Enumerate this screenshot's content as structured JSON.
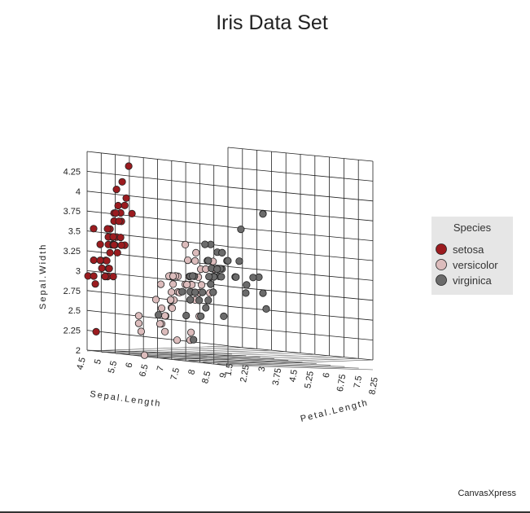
{
  "chart_data": {
    "type": "scatter",
    "title": "Iris Data Set",
    "xlabel": "Sepal.Length",
    "ylabel": "Sepal.Width",
    "zlabel": "Petal.Length",
    "x_ticks": [
      "4.5",
      "5",
      "5.5",
      "6",
      "6.5",
      "7",
      "7.5",
      "8",
      "8.5",
      "9"
    ],
    "y_ticks": [
      "2",
      "2.25",
      "2.5",
      "2.75",
      "3",
      "3.25",
      "3.5",
      "3.75",
      "4",
      "4.25"
    ],
    "z_ticks": [
      "1.5",
      "2.25",
      "3",
      "3.75",
      "4.5",
      "5.25",
      "6",
      "6.75",
      "7.5",
      "8.25"
    ],
    "xlim": [
      4.5,
      9
    ],
    "ylim": [
      2,
      4.5
    ],
    "zlim": [
      0.75,
      8.25
    ],
    "legend": {
      "title": "Species",
      "position": "right"
    },
    "series": [
      {
        "name": "setosa",
        "color": "#9b1b1f",
        "points": [
          [
            5.1,
            3.5,
            1.4
          ],
          [
            4.9,
            3.0,
            1.4
          ],
          [
            4.7,
            3.2,
            1.3
          ],
          [
            4.6,
            3.1,
            1.5
          ],
          [
            5.0,
            3.6,
            1.4
          ],
          [
            5.4,
            3.9,
            1.7
          ],
          [
            4.6,
            3.4,
            1.4
          ],
          [
            5.0,
            3.4,
            1.5
          ],
          [
            4.4,
            2.9,
            1.4
          ],
          [
            4.9,
            3.1,
            1.5
          ],
          [
            5.4,
            3.7,
            1.5
          ],
          [
            4.8,
            3.4,
            1.6
          ],
          [
            4.8,
            3.0,
            1.4
          ],
          [
            4.3,
            3.0,
            1.1
          ],
          [
            5.8,
            4.0,
            1.2
          ],
          [
            5.7,
            4.4,
            1.5
          ],
          [
            5.4,
            3.9,
            1.3
          ],
          [
            5.1,
            3.5,
            1.4
          ],
          [
            5.7,
            3.8,
            1.7
          ],
          [
            5.1,
            3.8,
            1.5
          ],
          [
            5.4,
            3.4,
            1.7
          ],
          [
            5.1,
            3.7,
            1.5
          ],
          [
            4.6,
            3.6,
            1.0
          ],
          [
            5.1,
            3.3,
            1.7
          ],
          [
            4.8,
            3.4,
            1.9
          ],
          [
            5.0,
            3.0,
            1.6
          ],
          [
            5.0,
            3.4,
            1.6
          ],
          [
            5.2,
            3.5,
            1.5
          ],
          [
            5.2,
            3.4,
            1.4
          ],
          [
            4.7,
            3.2,
            1.6
          ],
          [
            4.8,
            3.1,
            1.6
          ],
          [
            5.4,
            3.4,
            1.5
          ],
          [
            5.2,
            4.1,
            1.5
          ],
          [
            5.5,
            4.2,
            1.4
          ],
          [
            4.9,
            3.1,
            1.5
          ],
          [
            5.0,
            3.2,
            1.2
          ],
          [
            5.5,
            3.5,
            1.3
          ],
          [
            4.9,
            3.6,
            1.4
          ],
          [
            4.4,
            3.0,
            1.3
          ],
          [
            5.1,
            3.4,
            1.5
          ],
          [
            5.0,
            3.5,
            1.3
          ],
          [
            4.5,
            2.3,
            1.3
          ],
          [
            4.4,
            3.2,
            1.3
          ],
          [
            5.0,
            3.5,
            1.6
          ],
          [
            5.1,
            3.8,
            1.9
          ],
          [
            4.8,
            3.0,
            1.4
          ],
          [
            5.1,
            3.8,
            1.6
          ],
          [
            4.6,
            3.2,
            1.4
          ],
          [
            5.3,
            3.7,
            1.5
          ],
          [
            5.0,
            3.3,
            1.4
          ]
        ]
      },
      {
        "name": "versicolor",
        "color": "#dcbcbc",
        "points": [
          [
            7.0,
            3.2,
            4.7
          ],
          [
            6.4,
            3.2,
            4.5
          ],
          [
            6.9,
            3.1,
            4.9
          ],
          [
            5.5,
            2.3,
            4.0
          ],
          [
            6.5,
            2.8,
            4.6
          ],
          [
            5.7,
            2.8,
            4.5
          ],
          [
            6.3,
            3.3,
            4.7
          ],
          [
            4.9,
            2.4,
            3.3
          ],
          [
            6.6,
            2.9,
            4.6
          ],
          [
            5.2,
            2.7,
            3.9
          ],
          [
            5.0,
            2.0,
            3.5
          ],
          [
            5.9,
            3.0,
            4.2
          ],
          [
            6.0,
            2.2,
            4.0
          ],
          [
            6.1,
            2.9,
            4.7
          ],
          [
            5.6,
            2.9,
            3.6
          ],
          [
            6.7,
            3.1,
            4.4
          ],
          [
            5.6,
            3.0,
            4.5
          ],
          [
            5.8,
            2.7,
            4.1
          ],
          [
            6.2,
            2.2,
            4.5
          ],
          [
            5.6,
            2.5,
            3.9
          ],
          [
            5.9,
            3.2,
            4.8
          ],
          [
            6.1,
            2.8,
            4.0
          ],
          [
            6.3,
            2.5,
            4.9
          ],
          [
            6.1,
            2.8,
            4.7
          ],
          [
            6.4,
            2.9,
            4.3
          ],
          [
            6.6,
            3.0,
            4.4
          ],
          [
            6.8,
            2.8,
            4.8
          ],
          [
            6.7,
            3.0,
            5.0
          ],
          [
            6.0,
            2.9,
            4.5
          ],
          [
            5.7,
            2.6,
            3.5
          ],
          [
            5.5,
            2.4,
            3.8
          ],
          [
            5.5,
            2.4,
            3.7
          ],
          [
            5.8,
            2.7,
            3.9
          ],
          [
            6.0,
            2.7,
            5.1
          ],
          [
            5.4,
            3.0,
            4.5
          ],
          [
            6.0,
            3.4,
            4.5
          ],
          [
            6.7,
            3.1,
            4.7
          ],
          [
            6.3,
            2.3,
            4.4
          ],
          [
            5.6,
            3.0,
            4.1
          ],
          [
            5.5,
            2.5,
            4.0
          ],
          [
            5.5,
            2.6,
            4.4
          ],
          [
            6.1,
            3.0,
            4.6
          ],
          [
            5.8,
            2.6,
            4.0
          ],
          [
            5.0,
            2.3,
            3.3
          ],
          [
            5.6,
            2.7,
            4.2
          ],
          [
            5.7,
            3.0,
            4.2
          ],
          [
            5.7,
            2.9,
            4.2
          ],
          [
            6.2,
            2.9,
            4.3
          ],
          [
            5.1,
            2.5,
            3.0
          ],
          [
            5.7,
            2.8,
            4.1
          ]
        ]
      },
      {
        "name": "virginica",
        "color": "#6b6b6b",
        "points": [
          [
            6.3,
            3.3,
            6.0
          ],
          [
            5.8,
            2.7,
            5.1
          ],
          [
            7.1,
            3.0,
            5.9
          ],
          [
            6.3,
            2.9,
            5.6
          ],
          [
            6.5,
            3.0,
            5.8
          ],
          [
            7.6,
            3.0,
            6.6
          ],
          [
            4.9,
            2.5,
            4.5
          ],
          [
            7.3,
            2.9,
            6.3
          ],
          [
            6.7,
            2.5,
            5.8
          ],
          [
            7.2,
            3.6,
            6.1
          ],
          [
            6.5,
            3.2,
            5.1
          ],
          [
            6.4,
            2.7,
            5.3
          ],
          [
            6.8,
            3.0,
            5.5
          ],
          [
            5.7,
            2.5,
            5.0
          ],
          [
            5.8,
            2.8,
            5.1
          ],
          [
            6.4,
            3.2,
            5.3
          ],
          [
            6.5,
            3.0,
            5.5
          ],
          [
            7.7,
            3.8,
            6.7
          ],
          [
            7.7,
            2.6,
            6.9
          ],
          [
            6.0,
            2.2,
            5.0
          ],
          [
            6.9,
            3.2,
            5.7
          ],
          [
            5.6,
            2.8,
            4.9
          ],
          [
            7.7,
            2.8,
            6.7
          ],
          [
            6.3,
            2.7,
            4.9
          ],
          [
            6.7,
            3.3,
            5.7
          ],
          [
            7.2,
            3.2,
            6.0
          ],
          [
            6.2,
            2.8,
            4.8
          ],
          [
            6.1,
            3.0,
            4.9
          ],
          [
            6.4,
            2.8,
            5.6
          ],
          [
            7.2,
            3.0,
            5.8
          ],
          [
            7.4,
            2.8,
            6.1
          ],
          [
            7.9,
            3.8,
            6.4
          ],
          [
            6.4,
            2.8,
            5.6
          ],
          [
            6.3,
            2.8,
            5.1
          ],
          [
            6.1,
            2.6,
            5.6
          ],
          [
            7.7,
            3.0,
            6.1
          ],
          [
            6.3,
            3.4,
            5.6
          ],
          [
            6.4,
            3.1,
            5.5
          ],
          [
            6.0,
            3.0,
            4.8
          ],
          [
            6.9,
            3.1,
            5.4
          ],
          [
            6.7,
            3.1,
            5.6
          ],
          [
            6.9,
            3.1,
            5.1
          ],
          [
            5.8,
            2.7,
            5.1
          ],
          [
            6.8,
            3.2,
            5.9
          ],
          [
            6.7,
            3.3,
            5.7
          ],
          [
            6.7,
            3.0,
            5.2
          ],
          [
            6.3,
            2.5,
            5.0
          ],
          [
            6.5,
            3.0,
            5.2
          ],
          [
            6.2,
            3.4,
            5.4
          ],
          [
            5.9,
            3.0,
            5.1
          ]
        ]
      }
    ]
  },
  "footer": {
    "credit": "CanvasXpress"
  }
}
